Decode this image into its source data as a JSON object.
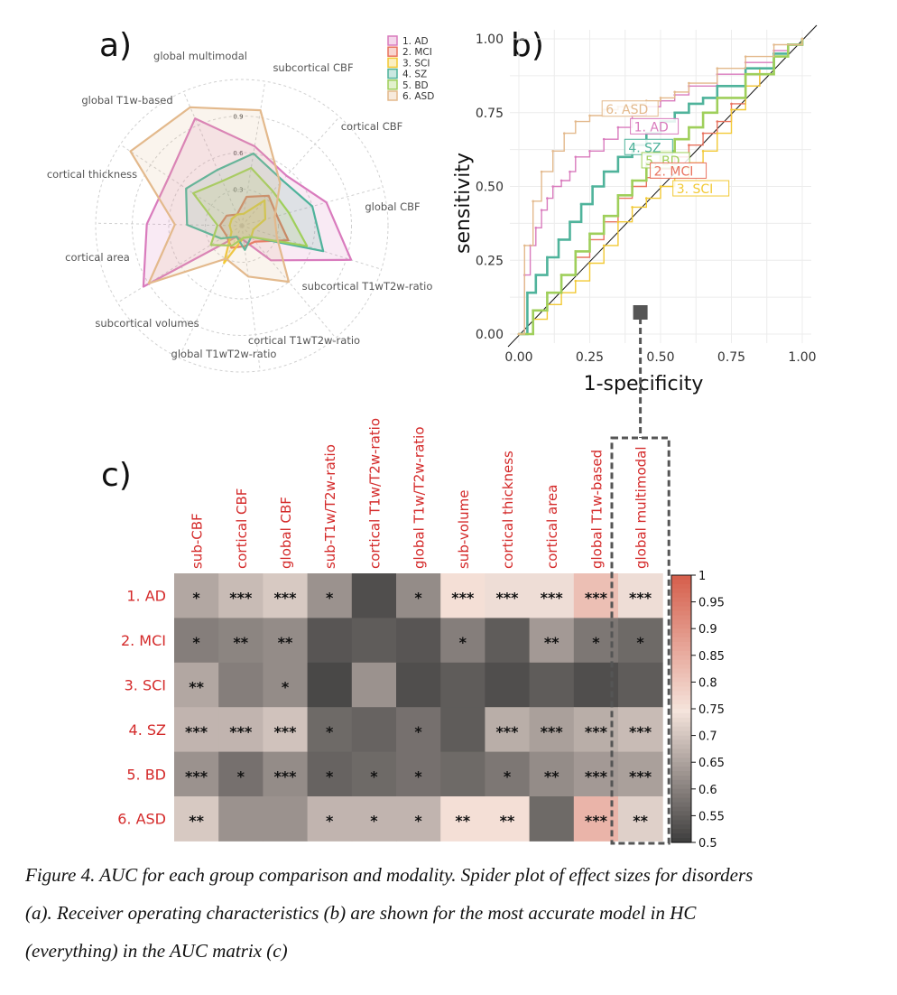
{
  "panel_labels": {
    "a": "a)",
    "b": "b)",
    "c": "c)"
  },
  "caption": {
    "line1": "Figure 4. AUC for each group comparison and modality. Spider plot of effect sizes for disorders",
    "line2": "(a). Receiver operating characteristics (b) are shown for the most accurate model in HC",
    "line3": "(everything) in the AUC matrix (c)"
  },
  "colors": {
    "AD": "#d97bbd",
    "MCI": "#e9735f",
    "SCI": "#f2c935",
    "SZ": "#4fb39b",
    "BD": "#9fcf5b",
    "ASD": "#e3b98c",
    "heat_low": "#3a3a3a",
    "heat_mid": "#f5e4dc",
    "heat_high": "#d6604d",
    "highlight": "#555555",
    "row_label": "#d42a2a"
  },
  "chart_data": [
    {
      "type": "radar",
      "panel": "a",
      "axes": [
        "global multimodal",
        "subcortical CBF",
        "cortical CBF",
        "global CBF",
        "subcortical T1wT2w-ratio",
        "cortical T1wT2w-ratio",
        "global T1wT2w-ratio",
        "subcortical volumes",
        "cortical area",
        "cortical thickness",
        "global T1w-based"
      ],
      "ring_labels": [
        "0.3",
        "0.6",
        "0.9"
      ],
      "rmax": 1.2,
      "series": [
        {
          "name": "1. AD",
          "key": "AD",
          "values": [
            0.66,
            0.55,
            0.72,
            0.94,
            0.37,
            0.12,
            0.1,
            0.95,
            0.78,
            0.72,
            0.96
          ]
        },
        {
          "name": "2. MCI",
          "key": "MCI",
          "values": [
            0.24,
            0.33,
            0.3,
            0.4,
            0.17,
            0.17,
            0.2,
            0.15,
            0.18,
            0.15,
            0.1
          ]
        },
        {
          "name": "3. SCI",
          "key": "SCI",
          "values": [
            0.1,
            0.28,
            0.2,
            0.1,
            0.12,
            0.1,
            0.34,
            0.1,
            0.1,
            0.1,
            0.1
          ]
        },
        {
          "name": "4. SZ",
          "key": "SZ",
          "values": [
            0.6,
            0.5,
            0.6,
            0.7,
            0.12,
            0.2,
            0.1,
            0.2,
            0.45,
            0.55,
            0.5
          ]
        },
        {
          "name": "5. BD",
          "key": "BD",
          "values": [
            0.48,
            0.38,
            0.4,
            0.56,
            0.12,
            0.1,
            0.18,
            0.3,
            0.2,
            0.48,
            0.4
          ]
        },
        {
          "name": "6. ASD",
          "key": "ASD",
          "values": [
            0.96,
            0.47,
            0.28,
            0.3,
            0.6,
            0.42,
            0.3,
            0.9,
            0.55,
            1.1,
            1.06
          ]
        }
      ]
    },
    {
      "type": "line",
      "panel": "b",
      "title": "",
      "xlabel": "1-specificity",
      "ylabel": "sensitivity",
      "xlim": [
        0,
        1
      ],
      "ylim": [
        0,
        1
      ],
      "x_ticks": [
        "0.00",
        "0.25",
        "0.50",
        "0.75",
        "1.00"
      ],
      "y_ticks": [
        "0.00",
        "0.25",
        "0.50",
        "0.75",
        "1.00"
      ],
      "series": [
        {
          "name": "1. AD",
          "key": "AD",
          "x": [
            0,
            0.02,
            0.04,
            0.06,
            0.08,
            0.1,
            0.12,
            0.15,
            0.18,
            0.2,
            0.25,
            0.3,
            0.35,
            0.4,
            0.45,
            0.5,
            0.55,
            0.6,
            0.7,
            0.8,
            0.9,
            0.95,
            1
          ],
          "y": [
            0,
            0.2,
            0.3,
            0.36,
            0.42,
            0.46,
            0.5,
            0.52,
            0.55,
            0.6,
            0.62,
            0.66,
            0.7,
            0.74,
            0.77,
            0.79,
            0.81,
            0.84,
            0.88,
            0.92,
            0.96,
            0.98,
            1
          ]
        },
        {
          "name": "2. MCI",
          "key": "MCI",
          "x": [
            0,
            0.05,
            0.1,
            0.15,
            0.2,
            0.25,
            0.3,
            0.35,
            0.4,
            0.45,
            0.5,
            0.55,
            0.6,
            0.65,
            0.7,
            0.75,
            0.8,
            0.85,
            0.9,
            0.95,
            1
          ],
          "y": [
            0,
            0.08,
            0.14,
            0.2,
            0.26,
            0.32,
            0.38,
            0.46,
            0.5,
            0.53,
            0.56,
            0.6,
            0.64,
            0.68,
            0.72,
            0.78,
            0.84,
            0.9,
            0.95,
            0.98,
            1
          ]
        },
        {
          "name": "3. SCI",
          "key": "SCI",
          "x": [
            0,
            0.05,
            0.1,
            0.15,
            0.2,
            0.25,
            0.3,
            0.35,
            0.4,
            0.45,
            0.5,
            0.55,
            0.6,
            0.65,
            0.7,
            0.75,
            0.8,
            0.85,
            0.9,
            0.95,
            1
          ],
          "y": [
            0,
            0.05,
            0.1,
            0.14,
            0.18,
            0.24,
            0.3,
            0.38,
            0.43,
            0.46,
            0.5,
            0.53,
            0.58,
            0.62,
            0.68,
            0.76,
            0.84,
            0.9,
            0.95,
            0.98,
            1
          ]
        },
        {
          "name": "4. SZ",
          "key": "SZ",
          "x": [
            0,
            0.03,
            0.06,
            0.1,
            0.14,
            0.18,
            0.22,
            0.26,
            0.3,
            0.35,
            0.4,
            0.45,
            0.5,
            0.55,
            0.6,
            0.65,
            0.7,
            0.8,
            0.9,
            0.95,
            1
          ],
          "y": [
            0,
            0.14,
            0.2,
            0.26,
            0.32,
            0.38,
            0.44,
            0.5,
            0.55,
            0.6,
            0.64,
            0.68,
            0.72,
            0.75,
            0.78,
            0.8,
            0.84,
            0.9,
            0.95,
            0.98,
            1
          ]
        },
        {
          "name": "5. BD",
          "key": "BD",
          "x": [
            0,
            0.05,
            0.1,
            0.15,
            0.2,
            0.25,
            0.3,
            0.35,
            0.4,
            0.45,
            0.5,
            0.55,
            0.6,
            0.65,
            0.7,
            0.8,
            0.9,
            0.95,
            1
          ],
          "y": [
            0,
            0.08,
            0.14,
            0.2,
            0.28,
            0.34,
            0.4,
            0.47,
            0.52,
            0.58,
            0.62,
            0.66,
            0.7,
            0.75,
            0.8,
            0.88,
            0.94,
            0.98,
            1
          ]
        },
        {
          "name": "6. ASD",
          "key": "ASD",
          "x": [
            0,
            0.02,
            0.05,
            0.08,
            0.12,
            0.16,
            0.2,
            0.25,
            0.3,
            0.35,
            0.4,
            0.45,
            0.5,
            0.55,
            0.6,
            0.7,
            0.8,
            0.9,
            1
          ],
          "y": [
            0,
            0.3,
            0.45,
            0.55,
            0.62,
            0.68,
            0.72,
            0.74,
            0.76,
            0.77,
            0.78,
            0.79,
            0.8,
            0.82,
            0.85,
            0.9,
            0.94,
            0.98,
            1
          ]
        }
      ],
      "labels": [
        {
          "text": "6. ASD",
          "key": "ASD",
          "x": 0.3,
          "y": 0.75
        },
        {
          "text": "1. AD",
          "key": "AD",
          "x": 0.4,
          "y": 0.69
        },
        {
          "text": "4. SZ",
          "key": "SZ",
          "x": 0.38,
          "y": 0.62
        },
        {
          "text": "5. BD",
          "key": "BD",
          "x": 0.44,
          "y": 0.575
        },
        {
          "text": "2. MCI",
          "key": "MCI",
          "x": 0.47,
          "y": 0.54
        },
        {
          "text": "3. SCI",
          "key": "SCI",
          "x": 0.55,
          "y": 0.48
        }
      ]
    },
    {
      "type": "heatmap",
      "panel": "c",
      "columns": [
        "sub-CBF",
        "cortical CBF",
        "global CBF",
        "sub-T1w/T2w-ratio",
        "cortical T1w/T2w-ratio",
        "global T1w/T2w-ratio",
        "sub-volume",
        "cortical thickness",
        "cortical area",
        "global T1w-based",
        "global multimodal"
      ],
      "rows": [
        "1. AD",
        "2. MCI",
        "3. SCI",
        "4. SZ",
        "5. BD",
        "6. ASD"
      ],
      "values": [
        [
          0.66,
          0.69,
          0.71,
          0.63,
          0.53,
          0.62,
          0.76,
          0.74,
          0.74,
          0.82,
          0.74
        ],
        [
          0.6,
          0.61,
          0.62,
          0.54,
          0.55,
          0.54,
          0.6,
          0.55,
          0.64,
          0.59,
          0.57
        ],
        [
          0.66,
          0.6,
          0.62,
          0.52,
          0.63,
          0.53,
          0.55,
          0.53,
          0.55,
          0.53,
          0.55
        ],
        [
          0.68,
          0.68,
          0.7,
          0.57,
          0.56,
          0.58,
          0.55,
          0.67,
          0.65,
          0.67,
          0.69
        ],
        [
          0.63,
          0.58,
          0.62,
          0.56,
          0.57,
          0.58,
          0.57,
          0.59,
          0.62,
          0.64,
          0.65
        ],
        [
          0.71,
          0.63,
          0.63,
          0.68,
          0.68,
          0.68,
          0.76,
          0.76,
          0.57,
          0.84,
          0.72
        ]
      ],
      "stars": [
        [
          "*",
          "***",
          "***",
          "*",
          "",
          "*",
          "***",
          "***",
          "***",
          "***",
          "***"
        ],
        [
          "*",
          "**",
          "**",
          "",
          "",
          "",
          "*",
          "",
          "**",
          "*",
          "*"
        ],
        [
          "**",
          "",
          "*",
          "",
          "",
          "",
          "",
          "",
          "",
          "",
          ""
        ],
        [
          "***",
          "***",
          "***",
          "*",
          "",
          "*",
          "",
          "***",
          "***",
          "***",
          "***"
        ],
        [
          "***",
          "*",
          "***",
          "*",
          "*",
          "*",
          "",
          "*",
          "**",
          "***",
          "***"
        ],
        [
          "**",
          "",
          "",
          "*",
          "*",
          "*",
          "**",
          "**",
          "",
          "***",
          "**"
        ]
      ],
      "colorbar": {
        "min": 0.5,
        "max": 1.0,
        "tick_labels": [
          "1",
          "0.95",
          "0.9",
          "0.85",
          "0.8",
          "0.75",
          "0.7",
          "0.65",
          "0.6",
          "0.55",
          "0.5"
        ]
      },
      "highlight_column": "global multimodal"
    }
  ]
}
